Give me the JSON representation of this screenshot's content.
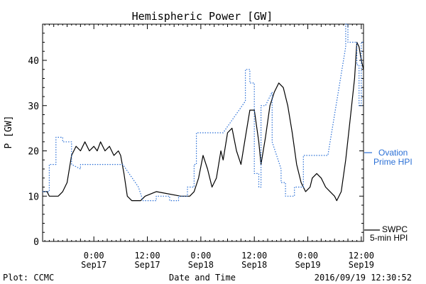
{
  "chart_data": {
    "type": "line",
    "title": "Hemispheric Power [GW]",
    "xlabel": "Date and Time",
    "ylabel": "P [GW]",
    "ylim": [
      0,
      48
    ],
    "y_ticks": [
      0,
      10,
      20,
      30,
      40
    ],
    "x_ticks": [
      {
        "x": "2016-09-17 00:00",
        "time": "0:00",
        "date": "Sep17"
      },
      {
        "x": "2016-09-17 12:00",
        "time": "12:00",
        "date": "Sep17"
      },
      {
        "x": "2016-09-18 00:00",
        "time": "0:00",
        "date": "Sep18"
      },
      {
        "x": "2016-09-18 12:00",
        "time": "12:00",
        "date": "Sep18"
      },
      {
        "x": "2016-09-19 00:00",
        "time": "0:00",
        "date": "Sep19"
      },
      {
        "x": "2016-09-19 12:00",
        "time": "12:00",
        "date": "Sep19"
      }
    ],
    "xlim": [
      "2016-09-16 12:30",
      "2016-09-19 12:30"
    ],
    "grid": false,
    "colors": {
      "swpc": "#000000",
      "ovation": "#2a6fd6"
    },
    "series": [
      {
        "key": "swpc",
        "name": "SWPC 5-min HPI",
        "label_line1": "SWPC",
        "label_line2": "5-min HPI",
        "style": "solid",
        "points": [
          [
            "2016-09-16 12:30",
            11
          ],
          [
            "2016-09-16 13:30",
            11
          ],
          [
            "2016-09-16 14:00",
            10
          ],
          [
            "2016-09-16 16:00",
            10
          ],
          [
            "2016-09-16 17:00",
            11
          ],
          [
            "2016-09-16 18:00",
            13
          ],
          [
            "2016-09-16 19:00",
            19
          ],
          [
            "2016-09-16 20:00",
            21
          ],
          [
            "2016-09-16 21:00",
            20
          ],
          [
            "2016-09-16 22:00",
            22
          ],
          [
            "2016-09-16 23:00",
            20
          ],
          [
            "2016-09-17 00:00",
            21
          ],
          [
            "2016-09-17 00:45",
            20
          ],
          [
            "2016-09-17 01:30",
            22
          ],
          [
            "2016-09-17 02:30",
            20
          ],
          [
            "2016-09-17 03:30",
            21
          ],
          [
            "2016-09-17 04:30",
            19
          ],
          [
            "2016-09-17 05:30",
            20
          ],
          [
            "2016-09-17 06:00",
            19
          ],
          [
            "2016-09-17 06:45",
            15
          ],
          [
            "2016-09-17 07:30",
            10
          ],
          [
            "2016-09-17 08:30",
            9
          ],
          [
            "2016-09-17 10:30",
            9
          ],
          [
            "2016-09-17 11:30",
            10
          ],
          [
            "2016-09-17 14:00",
            11
          ],
          [
            "2016-09-17 19:30",
            10
          ],
          [
            "2016-09-17 21:30",
            10
          ],
          [
            "2016-09-17 22:30",
            11
          ],
          [
            "2016-09-17 23:30",
            14
          ],
          [
            "2016-09-18 00:30",
            19
          ],
          [
            "2016-09-18 01:30",
            16
          ],
          [
            "2016-09-18 02:30",
            12
          ],
          [
            "2016-09-18 03:30",
            14
          ],
          [
            "2016-09-18 04:30",
            20
          ],
          [
            "2016-09-18 05:00",
            18
          ],
          [
            "2016-09-18 06:00",
            24
          ],
          [
            "2016-09-18 07:00",
            25
          ],
          [
            "2016-09-18 08:00",
            20
          ],
          [
            "2016-09-18 09:00",
            17
          ],
          [
            "2016-09-18 10:00",
            23
          ],
          [
            "2016-09-18 11:00",
            29
          ],
          [
            "2016-09-18 12:00",
            29
          ],
          [
            "2016-09-18 13:00",
            22
          ],
          [
            "2016-09-18 13:30",
            17
          ],
          [
            "2016-09-18 14:30",
            23
          ],
          [
            "2016-09-18 15:30",
            30
          ],
          [
            "2016-09-18 16:30",
            33
          ],
          [
            "2016-09-18 17:30",
            35
          ],
          [
            "2016-09-18 18:30",
            34
          ],
          [
            "2016-09-18 19:30",
            30
          ],
          [
            "2016-09-18 20:30",
            24
          ],
          [
            "2016-09-18 21:30",
            17
          ],
          [
            "2016-09-18 22:30",
            13
          ],
          [
            "2016-09-18 23:30",
            11
          ],
          [
            "2016-09-19 00:30",
            12
          ],
          [
            "2016-09-19 01:00",
            14
          ],
          [
            "2016-09-19 02:00",
            15
          ],
          [
            "2016-09-19 03:00",
            14
          ],
          [
            "2016-09-19 04:00",
            12
          ],
          [
            "2016-09-19 05:00",
            11
          ],
          [
            "2016-09-19 06:00",
            10
          ],
          [
            "2016-09-19 06:30",
            9
          ],
          [
            "2016-09-19 07:30",
            11
          ],
          [
            "2016-09-19 08:30",
            18
          ],
          [
            "2016-09-19 09:30",
            27
          ],
          [
            "2016-09-19 10:30",
            36
          ],
          [
            "2016-09-19 11:00",
            44
          ],
          [
            "2016-09-19 11:30",
            43
          ],
          [
            "2016-09-19 12:00",
            40
          ],
          [
            "2016-09-19 12:30",
            38
          ]
        ]
      },
      {
        "key": "ovation",
        "name": "Ovation Prime HPI",
        "label_line1": "Ovation",
        "label_line2": "Prime HPI",
        "style": "dotted",
        "points": [
          [
            "2016-09-16 12:30",
            11
          ],
          [
            "2016-09-16 14:00",
            11
          ],
          [
            "2016-09-16 14:00",
            17
          ],
          [
            "2016-09-16 15:30",
            17
          ],
          [
            "2016-09-16 15:30",
            23
          ],
          [
            "2016-09-16 17:00",
            23
          ],
          [
            "2016-09-16 17:00",
            22
          ],
          [
            "2016-09-16 19:00",
            22
          ],
          [
            "2016-09-16 19:00",
            17
          ],
          [
            "2016-09-16 21:00",
            16
          ],
          [
            "2016-09-16 21:00",
            17
          ],
          [
            "2016-09-17 06:30",
            17
          ],
          [
            "2016-09-17 10:00",
            12
          ],
          [
            "2016-09-17 11:00",
            9
          ],
          [
            "2016-09-17 14:00",
            9
          ],
          [
            "2016-09-17 14:00",
            10
          ],
          [
            "2016-09-17 17:00",
            10
          ],
          [
            "2016-09-17 17:00",
            9
          ],
          [
            "2016-09-17 19:00",
            9
          ],
          [
            "2016-09-17 19:00",
            10
          ],
          [
            "2016-09-17 21:00",
            10
          ],
          [
            "2016-09-17 21:00",
            12
          ],
          [
            "2016-09-17 22:30",
            12
          ],
          [
            "2016-09-17 22:30",
            17
          ],
          [
            "2016-09-17 23:00",
            17
          ],
          [
            "2016-09-17 23:00",
            24
          ],
          [
            "2016-09-18 05:00",
            24
          ],
          [
            "2016-09-18 10:00",
            31
          ],
          [
            "2016-09-18 10:00",
            38
          ],
          [
            "2016-09-18 11:00",
            38
          ],
          [
            "2016-09-18 11:00",
            35
          ],
          [
            "2016-09-18 12:00",
            35
          ],
          [
            "2016-09-18 12:00",
            15
          ],
          [
            "2016-09-18 13:00",
            15
          ],
          [
            "2016-09-18 13:00",
            12
          ],
          [
            "2016-09-18 13:30",
            12
          ],
          [
            "2016-09-18 13:30",
            30
          ],
          [
            "2016-09-18 14:30",
            30
          ],
          [
            "2016-09-18 16:00",
            33
          ],
          [
            "2016-09-18 16:00",
            22
          ],
          [
            "2016-09-18 18:00",
            16
          ],
          [
            "2016-09-18 18:00",
            13
          ],
          [
            "2016-09-18 19:00",
            13
          ],
          [
            "2016-09-18 19:00",
            10
          ],
          [
            "2016-09-18 21:00",
            10
          ],
          [
            "2016-09-18 21:00",
            12
          ],
          [
            "2016-09-18 23:00",
            12
          ],
          [
            "2016-09-18 23:00",
            19
          ],
          [
            "2016-09-19 04:30",
            19
          ],
          [
            "2016-09-19 08:30",
            43
          ],
          [
            "2016-09-19 08:30",
            48
          ],
          [
            "2016-09-19 09:00",
            48
          ],
          [
            "2016-09-19 09:00",
            44
          ],
          [
            "2016-09-19 11:00",
            44
          ],
          [
            "2016-09-19 11:00",
            39
          ],
          [
            "2016-09-19 11:30",
            39
          ],
          [
            "2016-09-19 11:30",
            30
          ],
          [
            "2016-09-19 12:00",
            30
          ],
          [
            "2016-09-19 12:00",
            44
          ],
          [
            "2016-09-19 12:30",
            44
          ]
        ]
      }
    ]
  },
  "footer": {
    "plot_credit": "Plot: CCMC",
    "timestamp": "2016/09/19 12:30:52"
  }
}
